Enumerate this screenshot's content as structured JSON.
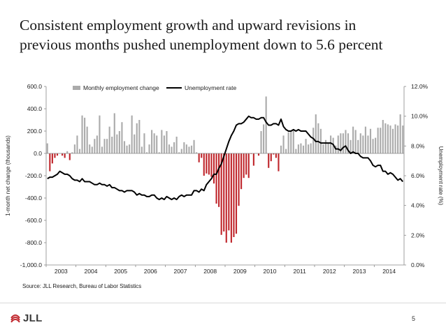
{
  "slide": {
    "title_line1": "Consistent employment growth and upward revisions in",
    "title_line2": "previous months pushed unemployment down to 5.6 percent",
    "source": "Source: JLL Research, Bureau of Labor Statistics",
    "page_number": "5",
    "logo_text": "JLL"
  },
  "colors": {
    "positive_bar": "#ababab",
    "negative_bar": "#c0272d",
    "line": "#000000",
    "axis": "#888888"
  },
  "chart_data": {
    "type": "bar+line",
    "legend": {
      "bars": "Monthly employment change",
      "line": "Unemployment rate",
      "placement": "top-center"
    },
    "ylabel_left": "1-month net change (thousands)",
    "ylabel_right": "Unemployment rate (%)",
    "ylim_left": [
      -1000,
      600
    ],
    "ylim_right": [
      0,
      12
    ],
    "yticks_left": [
      "600.0",
      "400.0",
      "200.0",
      "0.0",
      "-200.0",
      "-400.0",
      "-600.0",
      "-800.0",
      "-1,000.0"
    ],
    "yticks_right": [
      "12.0%",
      "10.0%",
      "8.0%",
      "6.0%",
      "4.0%",
      "2.0%",
      "0.0%"
    ],
    "xticks": [
      "2003",
      "2004",
      "2005",
      "2006",
      "2007",
      "2008",
      "2009",
      "2010",
      "2011",
      "2012",
      "2013",
      "2014"
    ],
    "start": "2003-01",
    "months": 144,
    "bars": {
      "name": "Monthly employment change",
      "values": [
        90,
        -160,
        -90,
        -40,
        -20,
        0,
        -20,
        -40,
        20,
        -60,
        10,
        80,
        160,
        40,
        340,
        320,
        240,
        80,
        60,
        130,
        160,
        340,
        60,
        130,
        130,
        240,
        150,
        360,
        170,
        200,
        280,
        110,
        70,
        80,
        340,
        170,
        270,
        300,
        60,
        180,
        10,
        80,
        210,
        180,
        160,
        10,
        210,
        160,
        200,
        80,
        60,
        100,
        150,
        10,
        40,
        100,
        80,
        60,
        70,
        120,
        10,
        -80,
        -40,
        -200,
        -180,
        -190,
        -210,
        -270,
        -450,
        -480,
        -730,
        -700,
        -800,
        -690,
        -800,
        -750,
        -720,
        -470,
        -320,
        -220,
        -190,
        -220,
        -5,
        -110,
        0,
        -20,
        200,
        260,
        510,
        -130,
        -70,
        -10,
        -40,
        -160,
        70,
        160,
        40,
        190,
        200,
        210,
        40,
        80,
        90,
        70,
        130,
        80,
        90,
        230,
        350,
        270,
        220,
        80,
        120,
        90,
        160,
        140,
        70,
        160,
        180,
        180,
        210,
        180,
        120,
        240,
        210,
        120,
        180,
        160,
        240,
        160,
        220,
        130,
        140,
        230,
        230,
        300,
        270,
        260,
        250,
        220,
        260,
        250,
        350,
        250
      ]
    },
    "line": {
      "name": "Unemployment rate",
      "values": [
        5.8,
        5.9,
        5.9,
        6.0,
        6.1,
        6.3,
        6.2,
        6.1,
        6.1,
        6.0,
        5.8,
        5.7,
        5.7,
        5.6,
        5.8,
        5.6,
        5.6,
        5.6,
        5.5,
        5.4,
        5.4,
        5.5,
        5.4,
        5.4,
        5.3,
        5.4,
        5.2,
        5.2,
        5.1,
        5.0,
        5.0,
        4.9,
        5.0,
        5.0,
        5.0,
        4.9,
        4.7,
        4.8,
        4.7,
        4.7,
        4.6,
        4.6,
        4.7,
        4.7,
        4.5,
        4.4,
        4.5,
        4.4,
        4.6,
        4.5,
        4.4,
        4.5,
        4.4,
        4.6,
        4.7,
        4.6,
        4.7,
        4.7,
        4.7,
        5.0,
        5.0,
        4.9,
        5.1,
        5.0,
        5.4,
        5.6,
        5.8,
        6.1,
        6.1,
        6.5,
        6.8,
        7.3,
        7.8,
        8.3,
        8.7,
        9.0,
        9.4,
        9.5,
        9.5,
        9.6,
        9.8,
        10.0,
        9.9,
        9.9,
        9.8,
        9.8,
        9.9,
        9.9,
        9.6,
        9.4,
        9.4,
        9.5,
        9.5,
        9.4,
        9.8,
        9.3,
        9.1,
        9.0,
        9.0,
        9.1,
        9.0,
        9.1,
        9.0,
        9.0,
        9.0,
        8.8,
        8.6,
        8.5,
        8.3,
        8.3,
        8.2,
        8.2,
        8.2,
        8.2,
        8.2,
        8.1,
        7.8,
        7.8,
        7.7,
        7.9,
        8.0,
        7.7,
        7.5,
        7.6,
        7.5,
        7.5,
        7.3,
        7.2,
        7.2,
        7.2,
        7.0,
        6.7,
        6.6,
        6.7,
        6.7,
        6.3,
        6.3,
        6.1,
        6.2,
        6.1,
        5.9,
        5.7,
        5.8,
        5.6
      ]
    }
  }
}
